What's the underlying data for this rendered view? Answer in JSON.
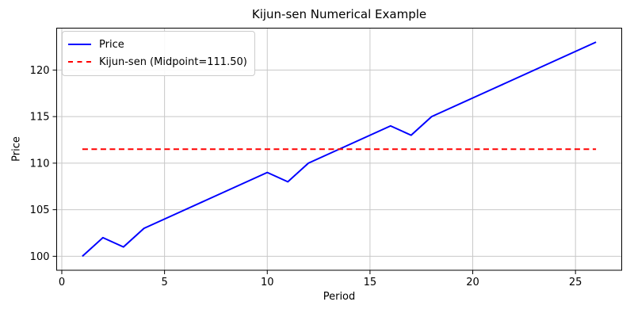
{
  "figure": {
    "background": "#ffffff"
  },
  "chart_data": {
    "type": "line",
    "title": "Kijun-sen Numerical Example",
    "xlabel": "Period",
    "ylabel": "Price",
    "xlim": [
      -0.25,
      27.25
    ],
    "ylim": [
      98.5,
      124.5
    ],
    "xticks": [
      0,
      5,
      10,
      15,
      20,
      25
    ],
    "yticks": [
      100,
      105,
      110,
      115,
      120
    ],
    "grid": true,
    "legend_position": "upper-left",
    "x": [
      1,
      2,
      3,
      4,
      5,
      6,
      7,
      8,
      9,
      10,
      11,
      12,
      13,
      14,
      15,
      16,
      17,
      18,
      19,
      20,
      21,
      22,
      23,
      24,
      25,
      26
    ],
    "series": [
      {
        "name": "Price",
        "color": "#0000ff",
        "style": "solid",
        "values": [
          100,
          102,
          101,
          103,
          104,
          105,
          106,
          107,
          108,
          109,
          108,
          110,
          111,
          112,
          113,
          114,
          113,
          115,
          116,
          117,
          118,
          119,
          120,
          121,
          122,
          123
        ]
      },
      {
        "name": "Kijun-sen (Midpoint=111.50)",
        "color": "#ff0000",
        "style": "dashed",
        "constant": 111.5,
        "midpoint": 111.5
      }
    ],
    "colors": {
      "grid": "#c8c8c8",
      "spine": "#000000",
      "text": "#000000",
      "price_line": "#0000ff",
      "kijun_line": "#ff0000"
    }
  }
}
